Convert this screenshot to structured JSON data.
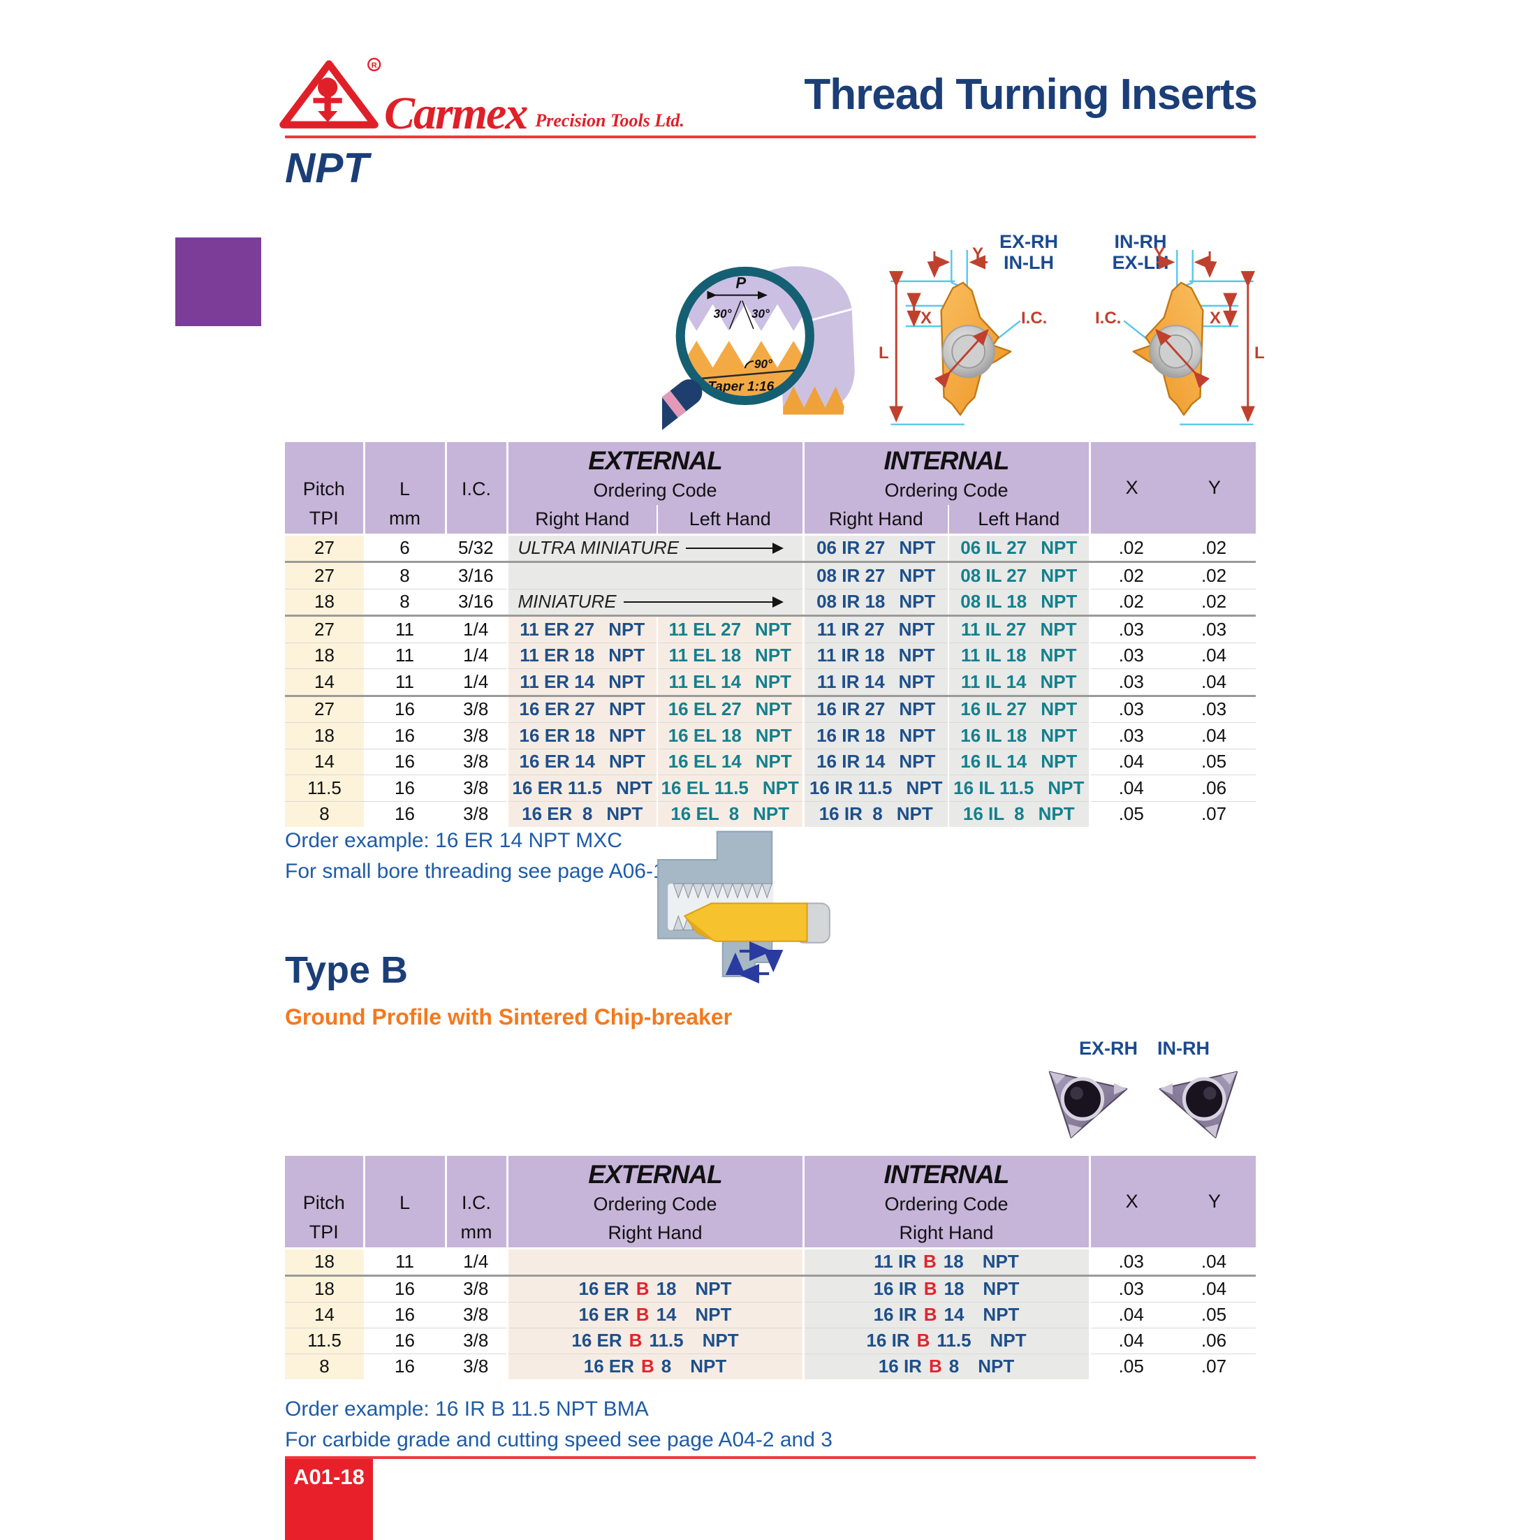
{
  "brand": {
    "name": "Carmex",
    "tagline": "Precision Tools Ltd.",
    "registered": "R"
  },
  "page_title": "Thread Turning Inserts",
  "section_title": "NPT",
  "profile_diagram": {
    "pitch_label": "P",
    "angle_left": "30°",
    "angle_right": "30°",
    "angle_90": "90°",
    "taper": "Taper 1:16"
  },
  "insert_diagram": {
    "left_top_label": "EX-RH",
    "left_bottom_label": "IN-LH",
    "right_top_label": "IN-RH",
    "right_bottom_label": "EX-LH",
    "dim_l": "L",
    "dim_x": "X",
    "dim_y": "Y",
    "dim_ic": "I.C."
  },
  "table1": {
    "col_pitch_1": "Pitch",
    "col_pitch_2": "TPI",
    "col_l": "L",
    "col_l_unit": "mm",
    "col_ic": "I.C.",
    "col_ic_unit": "",
    "group_external": "EXTERNAL",
    "group_internal": "INTERNAL",
    "ordering_code": "Ordering Code",
    "right_hand": "Right Hand",
    "left_hand": "Left Hand",
    "col_x": "X",
    "col_y": "Y",
    "code_suffix": "NPT",
    "rows": [
      {
        "pitch": "27",
        "l": "6",
        "ic": "5/32",
        "ext_label": "ULTRA MINIATURE",
        "arrow": true,
        "int_rh": "06 IR 27",
        "int_lh": "06 IL 27",
        "x": ".02",
        "y": ".02",
        "group_end": true
      },
      {
        "pitch": "27",
        "l": "8",
        "ic": "3/16",
        "ext_label": "",
        "arrow": false,
        "int_rh": "08 IR 27",
        "int_lh": "08 IL 27",
        "x": ".02",
        "y": ".02"
      },
      {
        "pitch": "18",
        "l": "8",
        "ic": "3/16",
        "ext_label": "MINIATURE",
        "arrow": true,
        "int_rh": "08 IR 18",
        "int_lh": "08 IL 18",
        "x": ".02",
        "y": ".02",
        "group_end": true
      },
      {
        "pitch": "27",
        "l": "11",
        "ic": "1/4",
        "ext_rh": "11 ER 27",
        "ext_lh": "11 EL 27",
        "int_rh": "11 IR 27",
        "int_lh": "11 IL 27",
        "x": ".03",
        "y": ".03"
      },
      {
        "pitch": "18",
        "l": "11",
        "ic": "1/4",
        "ext_rh": "11 ER 18",
        "ext_lh": "11 EL 18",
        "int_rh": "11 IR 18",
        "int_lh": "11 IL 18",
        "x": ".03",
        "y": ".04"
      },
      {
        "pitch": "14",
        "l": "11",
        "ic": "1/4",
        "ext_rh": "11 ER 14",
        "ext_lh": "11 EL 14",
        "int_rh": "11 IR 14",
        "int_lh": "11 IL 14",
        "x": ".03",
        "y": ".04",
        "group_end": true
      },
      {
        "pitch": "27",
        "l": "16",
        "ic": "3/8",
        "ext_rh": "16 ER 27",
        "ext_lh": "16 EL 27",
        "int_rh": "16 IR 27",
        "int_lh": "16 IL 27",
        "x": ".03",
        "y": ".03"
      },
      {
        "pitch": "18",
        "l": "16",
        "ic": "3/8",
        "ext_rh": "16 ER 18",
        "ext_lh": "16 EL 18",
        "int_rh": "16 IR 18",
        "int_lh": "16 IL 18",
        "x": ".03",
        "y": ".04"
      },
      {
        "pitch": "14",
        "l": "16",
        "ic": "3/8",
        "ext_rh": "16 ER 14",
        "ext_lh": "16 EL 14",
        "int_rh": "16 IR 14",
        "int_lh": "16 IL 14",
        "x": ".04",
        "y": ".05"
      },
      {
        "pitch": "11.5",
        "l": "16",
        "ic": "3/8",
        "ext_rh": "16 ER 11.5",
        "ext_lh": "16 EL 11.5",
        "int_rh": "16 IR 11.5",
        "int_lh": "16 IL 11.5",
        "x": ".04",
        "y": ".06"
      },
      {
        "pitch": "8",
        "l": "16",
        "ic": "3/8",
        "ext_rh": "16 ER  8",
        "ext_lh": "16 EL  8",
        "int_rh": "16 IR  8",
        "int_lh": "16 IL  8",
        "x": ".05",
        "y": ".07"
      }
    ]
  },
  "note1_line1": "Order example: 16 ER 14 NPT MXC",
  "note1_line2": "For small bore threading see page A06-16",
  "type_b": {
    "title": "Type B",
    "subtitle": "Ground Profile with Sintered Chip-breaker",
    "photo_label_left": "EX-RH",
    "photo_label_right": "IN-RH"
  },
  "table2": {
    "col_pitch_1": "Pitch",
    "col_pitch_2": "TPI",
    "col_l": "L",
    "col_l_unit": "",
    "col_ic": "I.C.",
    "col_ic_unit": "mm",
    "group_external": "EXTERNAL",
    "group_internal": "INTERNAL",
    "ordering_code": "Ordering Code",
    "right_hand": "Right Hand",
    "col_x": "X",
    "col_y": "Y",
    "code_suffix": "NPT",
    "rows": [
      {
        "pitch": "18",
        "l": "11",
        "ic": "1/4",
        "ext": null,
        "int": {
          "pre": "11 IR",
          "b": "B",
          "num": "18"
        },
        "x": ".03",
        "y": ".04",
        "group_end": true
      },
      {
        "pitch": "18",
        "l": "16",
        "ic": "3/8",
        "ext": {
          "pre": "16 ER",
          "b": "B",
          "num": "18"
        },
        "int": {
          "pre": "16 IR",
          "b": "B",
          "num": "18"
        },
        "x": ".03",
        "y": ".04"
      },
      {
        "pitch": "14",
        "l": "16",
        "ic": "3/8",
        "ext": {
          "pre": "16 ER",
          "b": "B",
          "num": "14"
        },
        "int": {
          "pre": "16 IR",
          "b": "B",
          "num": "14"
        },
        "x": ".04",
        "y": ".05"
      },
      {
        "pitch": "11.5",
        "l": "16",
        "ic": "3/8",
        "ext": {
          "pre": "16 ER",
          "b": "B",
          "num": "11.5"
        },
        "int": {
          "pre": "16 IR",
          "b": "B",
          "num": "11.5"
        },
        "x": ".04",
        "y": ".06"
      },
      {
        "pitch": "8",
        "l": "16",
        "ic": "3/8",
        "ext": {
          "pre": "16 ER",
          "b": "B",
          "num": "8"
        },
        "int": {
          "pre": "16 IR",
          "b": "B",
          "num": "8"
        },
        "x": ".05",
        "y": ".07"
      }
    ]
  },
  "note2_line1": "Order example: 16 IR B 11.5 NPT BMA",
  "note2_line2": "For carbide grade and cutting speed see page A04-2 and 3",
  "footer": {
    "page_number": "A01-18"
  },
  "colors": {
    "accent_red": "#e8202a",
    "rule_red": "#ef3a3f",
    "navy": "#1b3e77",
    "code_blue": "#1d4f8b",
    "code_teal": "#13808e",
    "code_red_b": "#e02530",
    "header_purple": "#c7b4d9",
    "square_purple": "#7b3d98",
    "pitch_cream": "#fdf3da",
    "external_pink": "#f7ece3",
    "internal_gray": "#e9e9e7",
    "orange": "#f4791f",
    "note_blue": "#1e5ba7"
  }
}
